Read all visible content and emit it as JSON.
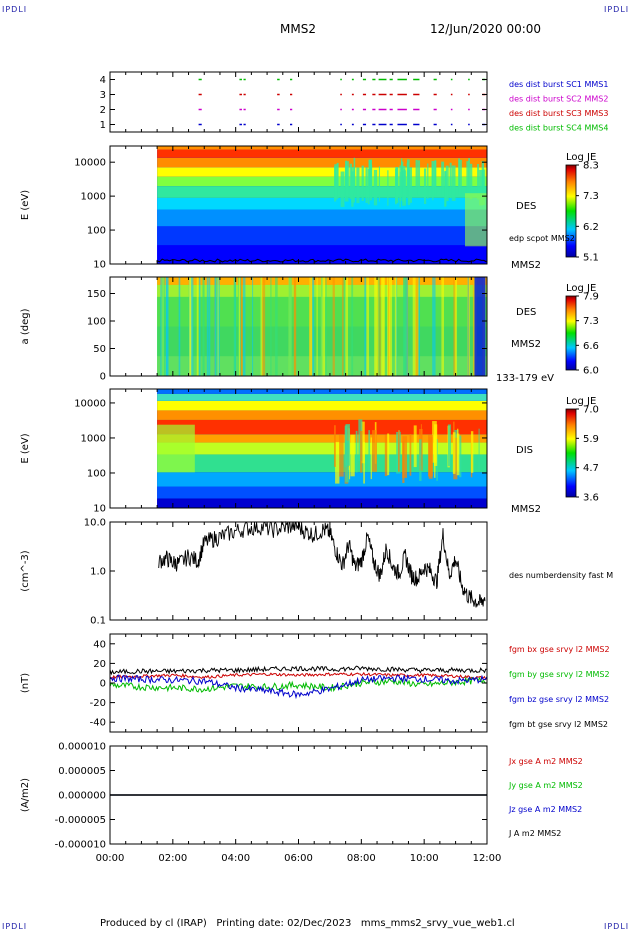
{
  "header": {
    "corner_label": "IPDLI",
    "spacecraft": "MMS2",
    "datetime": "12/Jun/2020 00:00"
  },
  "footer": {
    "produced_by": "Produced by cl (IRAP)",
    "printing_date": "Printing date: 02/Dec/2023",
    "program": "mms_mms2_srvy_vue_web1.cl"
  },
  "time_axis": {
    "range_hours": [
      0,
      12
    ],
    "tick_labels": [
      "00:00",
      "02:00",
      "04:00",
      "06:00",
      "08:00",
      "10:00",
      "12:00"
    ]
  },
  "chart_data": [
    {
      "type": "scatter",
      "panel": "availability",
      "ylim": [
        0.5,
        4.5
      ],
      "y_ticks": [
        "1",
        "2",
        "3",
        "4"
      ],
      "series": [
        {
          "name": "des dist burst SC1 MMS1",
          "color": "#0000cc",
          "level": 1
        },
        {
          "name": "des dist burst SC2 MMS2",
          "color": "#cc00cc",
          "level": 2
        },
        {
          "name": "des dist burst SC3 MMS3",
          "color": "#cc0000",
          "level": 3
        },
        {
          "name": "des dist burst SC4 MMS4",
          "color": "#00bb00",
          "level": 4
        }
      ],
      "burst_intervals_hours": [
        [
          2.82,
          2.92
        ],
        [
          4.12,
          4.2
        ],
        [
          4.25,
          4.32
        ],
        [
          5.32,
          5.4
        ],
        [
          5.73,
          5.8
        ],
        [
          7.33,
          7.38
        ],
        [
          7.7,
          7.76
        ],
        [
          8.05,
          8.15
        ],
        [
          8.35,
          8.45
        ],
        [
          8.55,
          8.8
        ],
        [
          8.9,
          9.0
        ],
        [
          9.15,
          9.45
        ],
        [
          9.65,
          9.85
        ],
        [
          10.3,
          10.4
        ],
        [
          10.85,
          10.9
        ],
        [
          11.4,
          11.45
        ],
        [
          11.85,
          11.95
        ]
      ]
    },
    {
      "type": "heatmap",
      "panel": "des-energy",
      "ylabel": "E (eV)",
      "y_scale": "log",
      "ylim": [
        10,
        30000
      ],
      "y_ticks": [
        "10",
        "100",
        "1000",
        "10000"
      ],
      "side_label": "DES",
      "spacecraft_label": "MMS2",
      "overlay_label": "edp scpot MMS2",
      "colorbar": {
        "title": "Log JE",
        "min": 5.1,
        "max": 8.3,
        "ticks": [
          "8.3",
          "7.3",
          "6.2",
          "5.1"
        ]
      },
      "data_start_hour": 1.5
    },
    {
      "type": "heatmap",
      "panel": "des-pitch-angle",
      "ylabel": "a (deg)",
      "ylim": [
        0,
        180
      ],
      "y_ticks": [
        "0",
        "50",
        "100",
        "150"
      ],
      "side_label": "DES",
      "spacecraft_label": "MMS2",
      "energy_band_label": "133-179 eV",
      "colorbar": {
        "title": "Log JE",
        "min": 6.0,
        "max": 7.9,
        "ticks": [
          "7.9",
          "7.3",
          "6.6",
          "6.0"
        ]
      },
      "data_start_hour": 1.5
    },
    {
      "type": "heatmap",
      "panel": "dis-energy",
      "ylabel": "E (eV)",
      "y_scale": "log",
      "ylim": [
        10,
        25000
      ],
      "y_ticks": [
        "10",
        "100",
        "1000",
        "10000"
      ],
      "side_label": "DIS",
      "spacecraft_label": "MMS2",
      "colorbar": {
        "title": "Log JE",
        "min": 3.6,
        "max": 7.0,
        "ticks": [
          "7.0",
          "5.9",
          "4.7",
          "3.6"
        ]
      },
      "data_start_hour": 1.5
    },
    {
      "type": "line",
      "panel": "density",
      "ylabel": "(cm^-3)",
      "y_scale": "log",
      "ylim": [
        0.1,
        10
      ],
      "y_ticks": [
        "0.1",
        "1.0",
        "10.0"
      ],
      "series": [
        {
          "name": "des numberdensity fast M",
          "color": "#000000",
          "x": [
            1.55,
            1.8,
            2.0,
            2.2,
            2.5,
            2.8,
            3.0,
            3.3,
            3.6,
            4.0,
            4.4,
            4.8,
            5.2,
            5.6,
            5.9,
            6.2,
            6.5,
            6.8,
            7.0,
            7.2,
            7.4,
            7.6,
            7.8,
            8.0,
            8.2,
            8.4,
            8.6,
            8.8,
            9.0,
            9.2,
            9.4,
            9.6,
            9.8,
            10.0,
            10.2,
            10.4,
            10.6,
            10.8,
            11.0,
            11.2,
            11.4,
            11.6,
            11.8,
            11.95
          ],
          "y": [
            1.6,
            1.8,
            1.5,
            1.4,
            2.0,
            1.6,
            3.8,
            4.5,
            5.2,
            6.5,
            7.5,
            8.0,
            7.0,
            7.8,
            8.5,
            6.5,
            5.5,
            7.0,
            6.0,
            2.5,
            1.3,
            3.5,
            1.2,
            1.6,
            5.0,
            1.5,
            0.8,
            3.0,
            1.2,
            0.9,
            2.0,
            0.8,
            0.7,
            1.2,
            1.0,
            0.6,
            5.5,
            0.8,
            1.8,
            0.5,
            0.3,
            0.25,
            0.22,
            0.3
          ]
        }
      ]
    },
    {
      "type": "line",
      "panel": "magnetic-field",
      "ylabel": "(nT)",
      "ylim": [
        -50,
        50
      ],
      "y_ticks": [
        "-40",
        "-20",
        "0",
        "20",
        "40"
      ],
      "series": [
        {
          "name": "fgm bx gse srvy l2 MMS2",
          "color": "#cc0000",
          "x": [
            0,
            1,
            2,
            3,
            4,
            5,
            6,
            7,
            8,
            9,
            10,
            11,
            12
          ],
          "y": [
            6,
            7,
            8,
            6,
            8,
            9,
            8,
            9,
            9,
            8,
            8,
            7,
            5
          ]
        },
        {
          "name": "fgm by gse srvy l2 MMS2",
          "color": "#00bb00",
          "x": [
            0,
            1,
            2,
            3,
            4,
            5,
            6,
            7,
            8,
            9,
            10,
            11,
            12
          ],
          "y": [
            -2,
            -4,
            -5,
            -6,
            -3,
            -4,
            -2,
            -5,
            0,
            2,
            -2,
            1,
            3
          ]
        },
        {
          "name": "fgm bz gse srvy l2 MMS2",
          "color": "#0000cc",
          "x": [
            0,
            1,
            2,
            3,
            4,
            5,
            6,
            7,
            8,
            9,
            10,
            11,
            12
          ],
          "y": [
            5,
            4,
            3,
            2,
            -5,
            -8,
            -12,
            -6,
            3,
            5,
            4,
            2,
            4
          ]
        },
        {
          "name": "fgm bt gse srvy l2 MMS2",
          "color": "#000000",
          "x": [
            0,
            1,
            2,
            3,
            4,
            5,
            6,
            7,
            8,
            9,
            10,
            11,
            12
          ],
          "y": [
            11,
            12,
            12,
            13,
            13,
            14,
            15,
            14,
            15,
            14,
            13,
            13,
            13
          ]
        }
      ]
    },
    {
      "type": "line",
      "panel": "current-density",
      "ylabel": "(A/m2)",
      "ylim": [
        -1e-05,
        1e-05
      ],
      "y_ticks": [
        "-0.000010",
        "-0.000005",
        "0.000000",
        "0.000005",
        "0.000010"
      ],
      "series": [
        {
          "name": "Jx gse A m2 MMS2",
          "color": "#cc0000",
          "x": [
            0,
            12
          ],
          "y": [
            0,
            0
          ]
        },
        {
          "name": "Jy gse A m2 MMS2",
          "color": "#00bb00",
          "x": [
            0,
            12
          ],
          "y": [
            0,
            0
          ]
        },
        {
          "name": "Jz gse A m2 MMS2",
          "color": "#0000cc",
          "x": [
            0,
            12
          ],
          "y": [
            0,
            0
          ]
        },
        {
          "name": "J A m2 MMS2",
          "color": "#000000",
          "x": [
            0,
            12
          ],
          "y": [
            0,
            0
          ]
        }
      ]
    }
  ]
}
